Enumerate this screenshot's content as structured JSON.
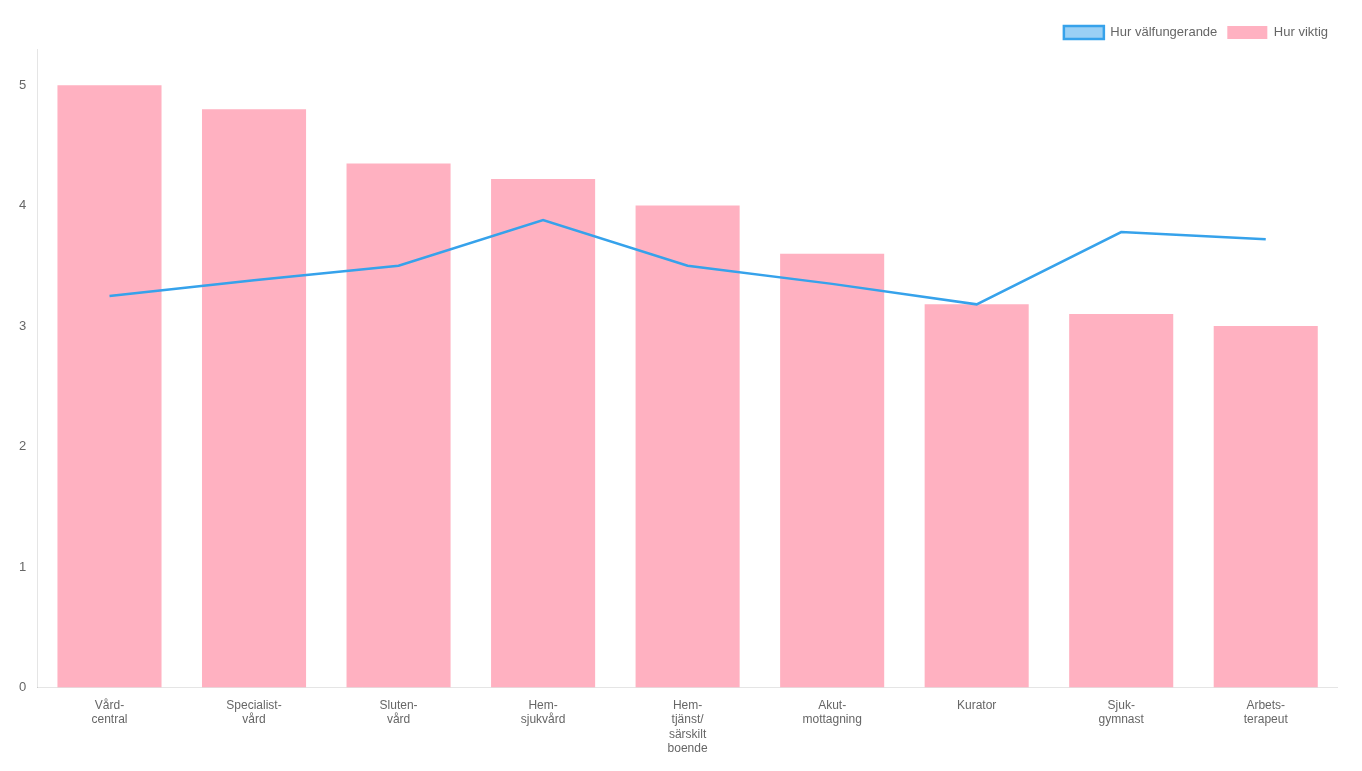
{
  "chart_data": {
    "type": "bar",
    "categories": [
      "Vård-\ncentral",
      "Specialist-\nvård",
      "Sluten-\nvård",
      "Hem-\nsjukvård",
      "Hem-\ntjänst/\nsärskilt\nboende",
      "Akut-\nmottagning",
      "Kurator",
      "Sjuk-\ngymnast",
      "Arbets-\nterapeut"
    ],
    "series": [
      {
        "name": "Hur välfungerande",
        "type": "line",
        "values": [
          3.25,
          3.38,
          3.5,
          3.88,
          3.5,
          3.35,
          3.18,
          3.78,
          3.72
        ]
      },
      {
        "name": "Hur viktig",
        "type": "bar",
        "values": [
          5.0,
          4.8,
          4.35,
          4.22,
          4.0,
          3.6,
          3.18,
          3.1,
          3.0
        ]
      }
    ],
    "ylim": [
      0,
      5.3
    ],
    "yticks": [
      0,
      1,
      2,
      3,
      4,
      5
    ],
    "grid": false,
    "legend": "upper right"
  }
}
